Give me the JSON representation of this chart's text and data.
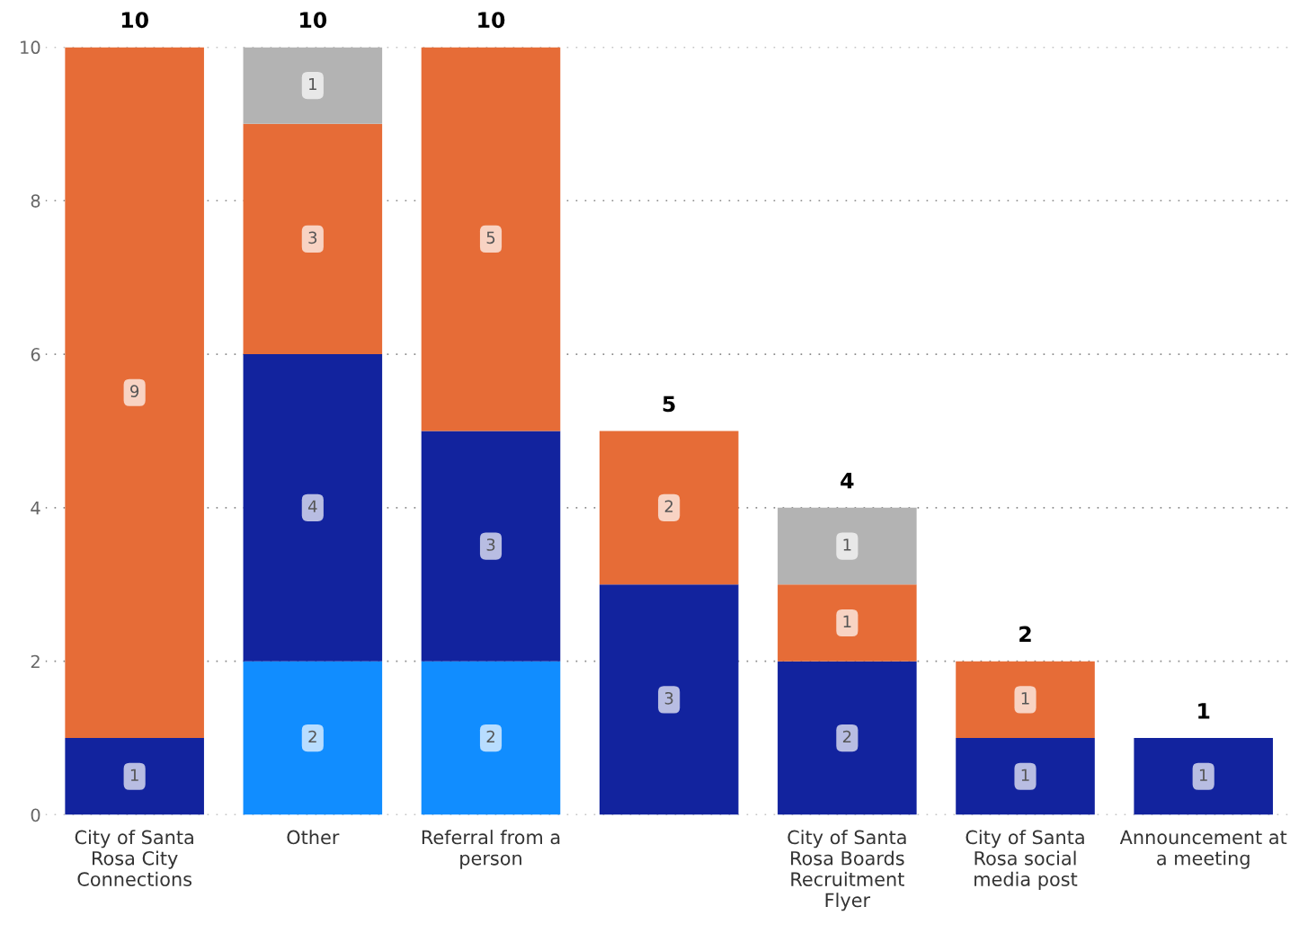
{
  "chart_data": {
    "type": "bar",
    "stacked": true,
    "categories": [
      "City of Santa Rosa City Connections",
      "Other",
      "Referral from a person",
      null,
      "City of Santa Rosa Boards Recruitment Flyer",
      "City of Santa Rosa social media post",
      "Announcement at a meeting"
    ],
    "series": [
      {
        "color": "#118dff",
        "values": [
          null,
          2,
          2,
          null,
          null,
          null,
          null
        ]
      },
      {
        "color": "#12239e",
        "values": [
          1,
          4,
          3,
          3,
          2,
          1,
          1
        ]
      },
      {
        "color": "#e66c37",
        "values": [
          9,
          3,
          5,
          2,
          1,
          1,
          null
        ]
      },
      {
        "color": "#b3b3b3",
        "values": [
          null,
          1,
          null,
          null,
          1,
          null,
          null
        ]
      }
    ],
    "totals": [
      "10",
      "10",
      "10",
      "5",
      "4",
      "2",
      "1"
    ],
    "data_labels": true,
    "ylim": [
      0,
      10
    ],
    "yticks": [
      0,
      2,
      4,
      6,
      8,
      10
    ],
    "grid": "y",
    "legend": false
  }
}
